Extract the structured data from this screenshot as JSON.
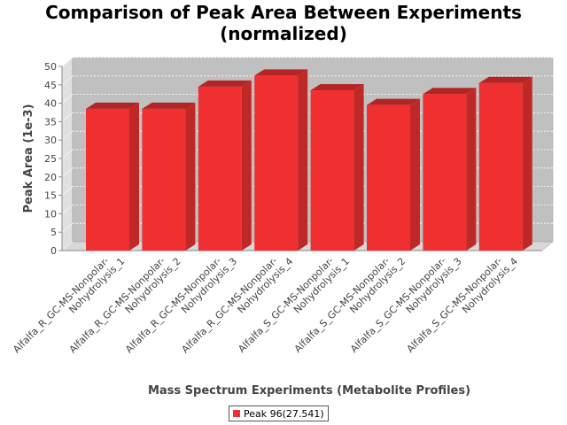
{
  "chart_data": {
    "type": "bar",
    "title_line1": "Comparison of Peak Area Between Experiments",
    "title_line2": "(normalized)",
    "xlabel": "Mass Spectrum Experiments (Metabolite Profiles)",
    "ylabel": "Peak Area (1e-3)",
    "ylim": [
      0,
      50
    ],
    "yticks": [
      0,
      5,
      10,
      15,
      20,
      25,
      30,
      35,
      40,
      45,
      50
    ],
    "categories": [
      [
        "Alfalfa_R_GC-MS-Nonpolar-",
        "Nohydrolysis_1"
      ],
      [
        "Alfalfa_R_GC-MS-Nonpolar-",
        "Nohydrolysis_2"
      ],
      [
        "Alfalfa_R_GC-MS-Nonpolar-",
        "Nohydrolysis_3"
      ],
      [
        "Alfalfa_R_GC-MS-Nonpolar-",
        "Nohydrolysis_4"
      ],
      [
        "Alfalfa_S_GC-MS-Nonpolar-",
        "Nohydrolysis_1"
      ],
      [
        "Alfalfa_S_GC-MS-Nonpolar-",
        "Nohydrolysis_2"
      ],
      [
        "Alfalfa_S_GC-MS-Nonpolar-",
        "Nohydrolysis_3"
      ],
      [
        "Alfalfa_S_GC-MS-Nonpolar-",
        "Nohydrolysis_4"
      ]
    ],
    "series": [
      {
        "name": "Peak 96(27.541)",
        "color": "#f03030",
        "values": [
          38.5,
          38.5,
          44.5,
          47.5,
          43.5,
          39.5,
          42.5,
          45.5
        ]
      }
    ],
    "grid": true,
    "legend_position": "bottom"
  }
}
